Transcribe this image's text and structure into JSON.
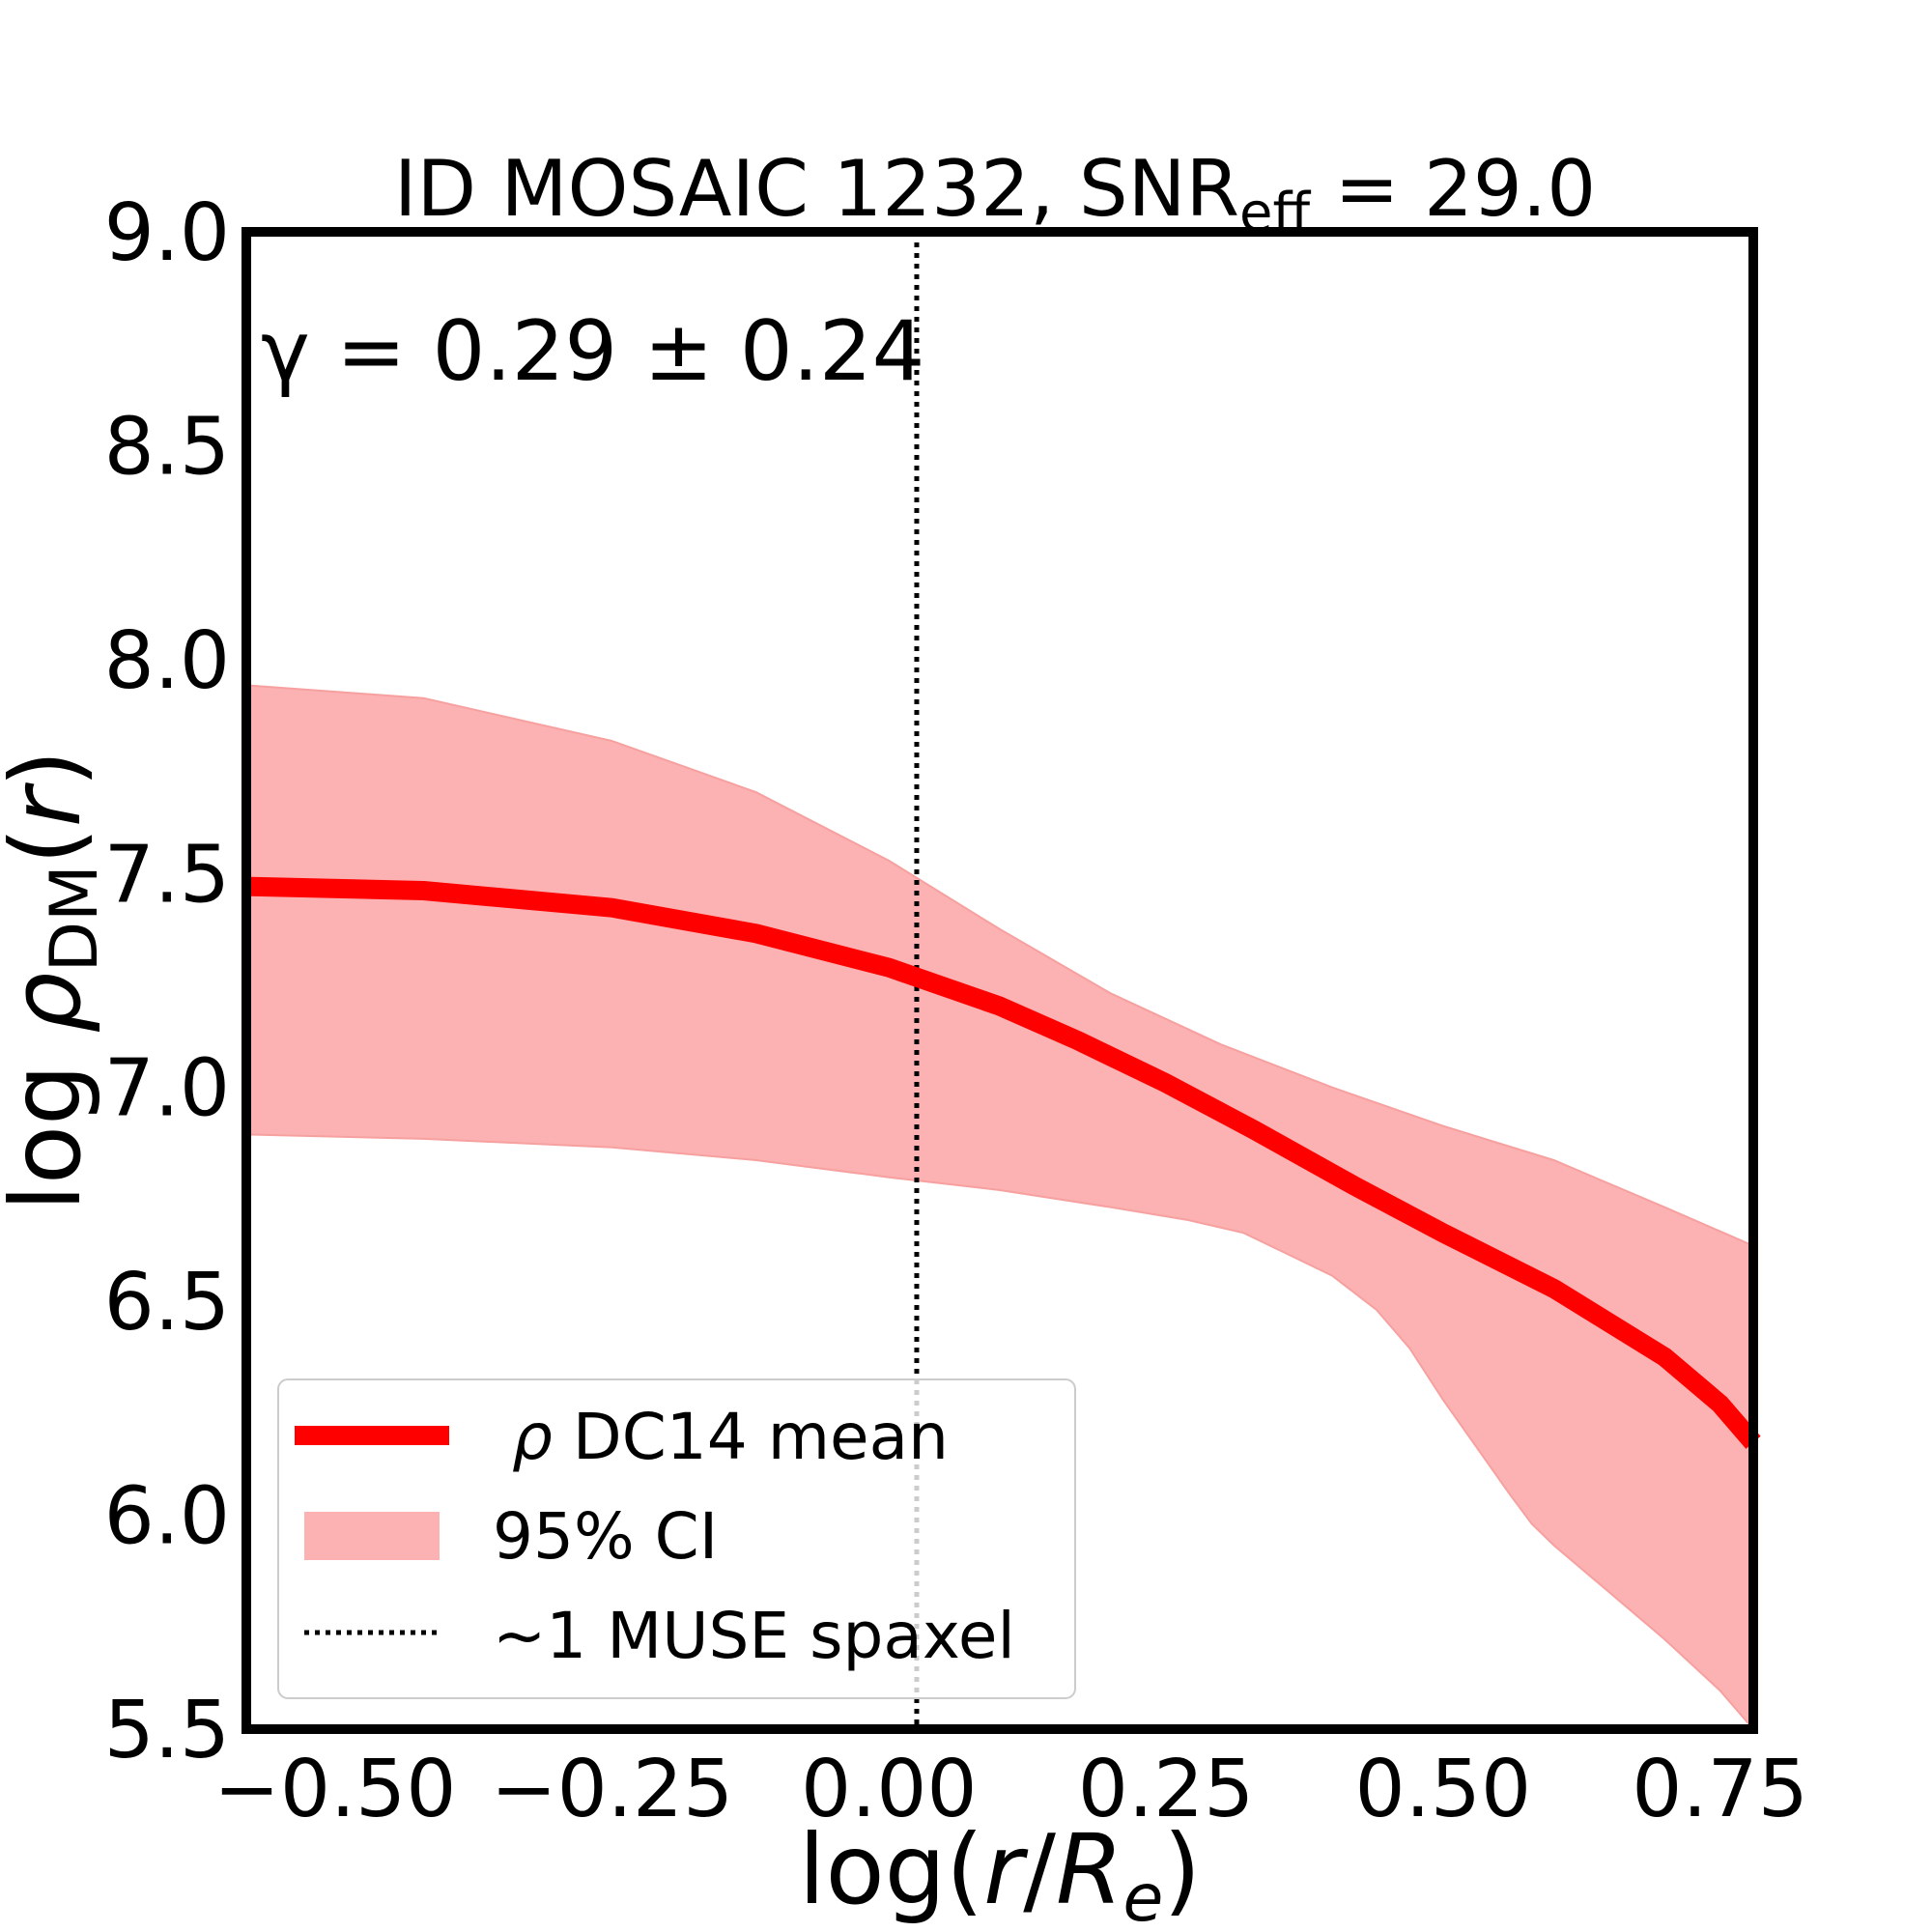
{
  "chart_data": {
    "type": "line",
    "title_main": "ID MOSAIC 1232, SNR",
    "title_sub": "eff",
    "title_tail": " = 29.0",
    "xlabel": "log(r/R_e)",
    "xlabel_parts": {
      "pre": "log(",
      "r": "r",
      "slash": "/",
      "R": "R",
      "sub": "e",
      "post": ")"
    },
    "ylabel": "log ρ_DM(r)",
    "ylabel_parts": {
      "pre": "log ",
      "rho": "ρ",
      "sub": "DM",
      "paren_open": "(",
      "r": "r",
      "paren_close": ")"
    },
    "xlim": [
      -0.58,
      0.78
    ],
    "ylim": [
      5.5,
      9.0
    ],
    "xticks": [
      -0.5,
      -0.25,
      0.0,
      0.25,
      0.5,
      0.75
    ],
    "xtick_labels": [
      "−0.50",
      "−0.25",
      "0.00",
      "0.25",
      "0.50",
      "0.75"
    ],
    "yticks": [
      5.5,
      6.0,
      6.5,
      7.0,
      7.5,
      8.0,
      8.5,
      9.0
    ],
    "ytick_labels": [
      "5.5",
      "6.0",
      "6.5",
      "7.0",
      "7.5",
      "8.0",
      "8.5",
      "9.0"
    ],
    "annotation": "γ = 0.29 ± 0.24",
    "vline": {
      "x": 0.025,
      "label": "~1 MUSE spaxel"
    },
    "colors": {
      "mean": "#ff0000",
      "band": "#fcb2b2",
      "vline": "#000000",
      "frame": "#000000"
    },
    "series": [
      {
        "name": "ρ DC14 mean",
        "x": [
          -0.58,
          -0.42,
          -0.25,
          -0.12,
          0.0,
          0.1,
          0.17,
          0.25,
          0.33,
          0.42,
          0.5,
          0.6,
          0.7,
          0.75,
          0.78
        ],
        "values": [
          7.47,
          7.46,
          7.42,
          7.36,
          7.28,
          7.19,
          7.11,
          7.01,
          6.9,
          6.77,
          6.66,
          6.53,
          6.37,
          6.26,
          6.17
        ]
      }
    ],
    "band": {
      "name": "95% CI",
      "x": [
        -0.58,
        -0.42,
        -0.25,
        -0.12,
        0.0,
        0.1,
        0.2,
        0.3,
        0.4,
        0.5,
        0.6,
        0.7,
        0.78
      ],
      "upper": [
        7.94,
        7.91,
        7.81,
        7.69,
        7.53,
        7.37,
        7.22,
        7.1,
        7.0,
        6.91,
        6.83,
        6.72,
        6.63
      ],
      "x_lower": [
        -0.58,
        -0.42,
        -0.25,
        -0.12,
        0.0,
        0.1,
        0.2,
        0.27,
        0.32,
        0.36,
        0.4,
        0.44,
        0.47,
        0.5,
        0.53,
        0.56,
        0.58,
        0.6,
        0.65,
        0.7,
        0.75,
        0.78
      ],
      "lower": [
        6.89,
        6.88,
        6.86,
        6.83,
        6.79,
        6.76,
        6.72,
        6.69,
        6.66,
        6.61,
        6.56,
        6.48,
        6.39,
        6.27,
        6.16,
        6.05,
        5.98,
        5.93,
        5.82,
        5.71,
        5.59,
        5.5
      ]
    },
    "legend": {
      "position": "lower-left",
      "entries": [
        "ρ DC14 mean",
        "95% CI",
        "~1 MUSE spaxel"
      ],
      "mean_label_rho": "ρ",
      "mean_label_rest": " DC14 mean"
    }
  }
}
